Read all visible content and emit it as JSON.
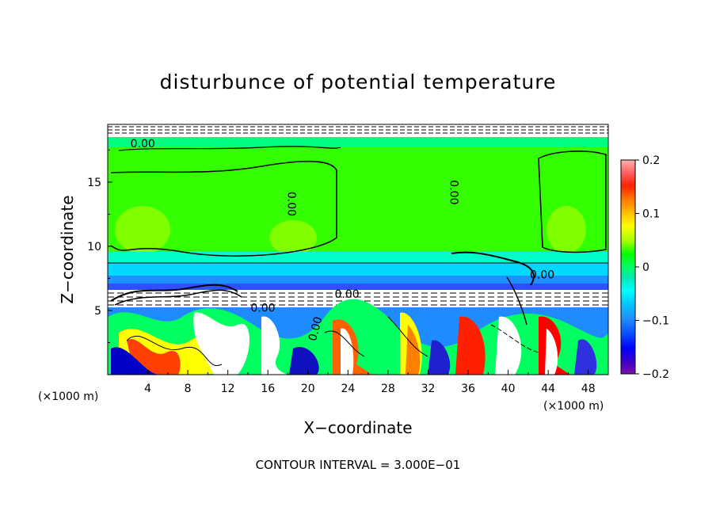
{
  "chart_data": {
    "type": "heatmap",
    "title": "disturbunce of potential temperature",
    "xlabel": "X−coordinate",
    "ylabel": "Z−coordinate",
    "x_unit": "(×1000 m)",
    "z_unit": "(×1000 m)",
    "xlim": [
      0,
      50
    ],
    "ylim": [
      0,
      19.5
    ],
    "x_ticks": [
      4,
      8,
      12,
      16,
      20,
      24,
      28,
      32,
      36,
      40,
      44,
      48
    ],
    "y_ticks": [
      5,
      10,
      15
    ],
    "colorbar": {
      "range": [
        -0.2,
        0.2
      ],
      "ticks": [
        0.2,
        0.1,
        0,
        -0.1,
        -0.2
      ],
      "tick_labels": [
        "0.2",
        "0.1",
        "0",
        "−0.1",
        "−0.2"
      ],
      "colors": [
        "#7d0fa8",
        "#3b00c8",
        "#0000ff",
        "#0a50ff",
        "#1e90ff",
        "#00c8ff",
        "#00ffff",
        "#00e8b0",
        "#00ff60",
        "#00ff00",
        "#40ff00",
        "#a0ff00",
        "#ffff00",
        "#ffc000",
        "#ff8000",
        "#ff2000",
        "#ff0000",
        "#ff6060",
        "#ffb0b0"
      ]
    },
    "contour_labels": [
      {
        "text": "0.00",
        "x": 3.5,
        "z": 17.7,
        "rotate": 0
      },
      {
        "text": "0.00",
        "x": 18.0,
        "z": 13.3,
        "rotate": 90
      },
      {
        "text": "0.00",
        "x": 34.2,
        "z": 14.2,
        "rotate": 90
      },
      {
        "text": "0.00",
        "x": 23.9,
        "z": 6.0,
        "rotate": 0
      },
      {
        "text": "0.00",
        "x": 15.5,
        "z": 4.9,
        "rotate": 0
      },
      {
        "text": "0.00",
        "x": 21.1,
        "z": 3.5,
        "rotate": -75
      },
      {
        "text": "0.00",
        "x": 43.4,
        "z": 7.5,
        "rotate": 0
      }
    ],
    "annotation": "CONTOUR INTERVAL = 3.000E−01"
  }
}
